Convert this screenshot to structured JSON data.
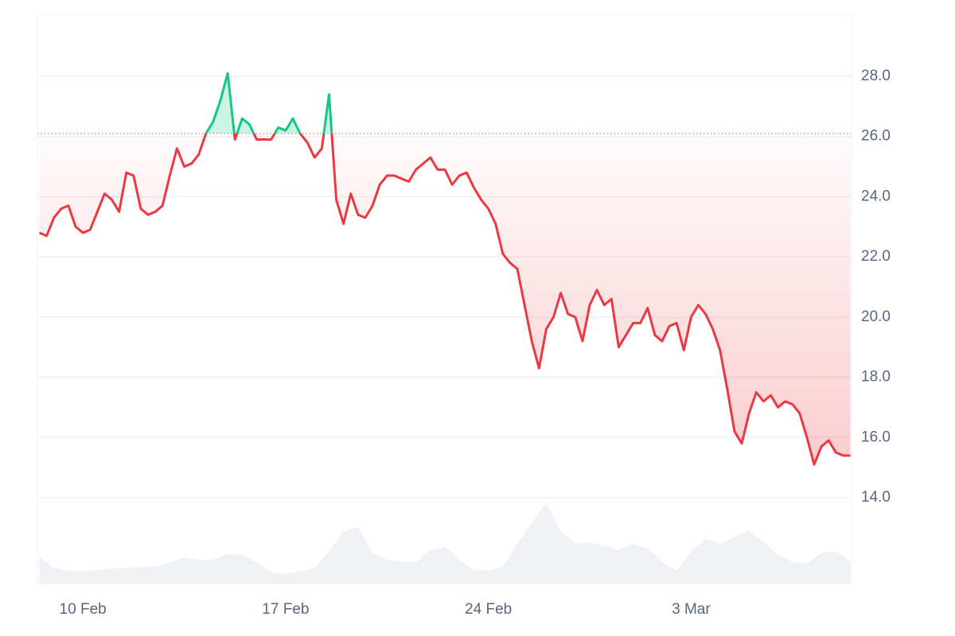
{
  "chart_data": {
    "type": "line",
    "x": [
      8.5,
      8.75,
      9,
      9.25,
      9.5,
      9.75,
      10,
      10.25,
      10.5,
      10.75,
      11,
      11.25,
      11.5,
      11.75,
      12,
      12.25,
      12.5,
      12.75,
      13,
      13.25,
      13.5,
      13.75,
      14,
      14.25,
      14.5,
      14.75,
      15,
      15.25,
      15.5,
      15.75,
      16,
      16.25,
      16.5,
      16.75,
      17,
      17.25,
      17.5,
      17.75,
      18,
      18.25,
      18.5,
      18.75,
      19,
      19.25,
      19.5,
      19.75,
      20,
      20.25,
      20.5,
      20.75,
      21,
      21.25,
      21.5,
      21.75,
      22,
      22.25,
      22.5,
      22.75,
      23,
      23.25,
      23.5,
      23.75,
      24,
      24.25,
      24.5,
      24.75,
      25,
      25.25,
      25.5,
      25.75,
      26,
      26.25,
      26.5,
      26.75,
      27,
      27.25,
      27.5,
      27.75,
      28,
      28.25,
      28.5,
      28.75,
      29,
      29.25,
      29.5,
      29.75,
      30,
      30.25,
      30.5,
      30.75,
      31,
      31.25,
      31.5,
      31.75,
      32,
      32.25,
      32.5,
      32.75,
      33,
      33.25,
      33.5,
      33.75,
      34,
      34.25,
      34.5,
      34.75,
      35,
      35.25,
      35.5,
      35.75,
      36,
      36.25,
      36.5
    ],
    "series": [
      {
        "values": [
          22.8,
          22.7,
          23.3,
          23.6,
          23.7,
          23.0,
          22.8,
          22.9,
          23.5,
          24.1,
          23.9,
          23.5,
          24.8,
          24.7,
          23.6,
          23.4,
          23.5,
          23.7,
          24.7,
          25.6,
          25.0,
          25.1,
          25.4,
          26.1,
          26.5,
          27.2,
          28.1,
          25.9,
          26.6,
          26.4,
          25.9,
          25.9,
          25.9,
          26.3,
          26.2,
          26.6,
          26.1,
          25.8,
          25.3,
          25.6,
          27.4,
          23.9,
          23.1,
          24.1,
          23.4,
          23.3,
          23.7,
          24.4,
          24.7,
          24.7,
          24.6,
          24.5,
          24.9,
          25.1,
          25.3,
          24.9,
          24.9,
          24.4,
          24.7,
          24.8,
          24.3,
          23.9,
          23.6,
          23.1,
          22.1,
          21.8,
          21.6,
          20.4,
          19.2,
          18.3,
          19.6,
          20.0,
          20.8,
          20.1,
          20.0,
          19.2,
          20.4,
          20.9,
          20.4,
          20.6,
          19.0,
          19.4,
          19.8,
          19.8,
          20.3,
          19.4,
          19.2,
          19.7,
          19.8,
          18.9,
          20.0,
          20.4,
          20.1,
          19.6,
          18.9,
          17.6,
          16.2,
          15.8,
          16.8,
          17.5,
          17.2,
          17.4,
          17.0,
          17.2,
          17.1,
          16.8,
          16.0,
          15.1,
          15.7,
          15.9,
          15.5,
          15.4,
          15.4
        ],
        "color_up": "#16c784",
        "color_down": "#ea3943"
      }
    ],
    "baseline": 26.1,
    "xlim": [
      8.43,
      36.54
    ],
    "xticks": [
      {
        "value": 10,
        "label": "10 Feb"
      },
      {
        "value": 17,
        "label": "17 Feb"
      },
      {
        "value": 24,
        "label": "24 Feb"
      },
      {
        "value": 31,
        "label": "3 Mar"
      }
    ],
    "ylim": [
      11.12,
      30.06
    ],
    "yticks": [
      {
        "value": 14,
        "label": "14.0"
      },
      {
        "value": 16,
        "label": "16.0"
      },
      {
        "value": 18,
        "label": "18.0"
      },
      {
        "value": 20,
        "label": "20.0"
      },
      {
        "value": 22,
        "label": "22.0"
      },
      {
        "value": 24,
        "label": "24.0"
      },
      {
        "value": 26,
        "label": "26.0"
      },
      {
        "value": 28,
        "label": "28.0"
      }
    ],
    "y_axis_side": "right",
    "grid": true,
    "volume": {
      "x": [
        8.5,
        9,
        9.5,
        10,
        10.5,
        11,
        11.5,
        12,
        12.5,
        13,
        13.5,
        14,
        14.5,
        15,
        15.5,
        16,
        16.5,
        17,
        17.5,
        18,
        18.5,
        19,
        19.5,
        20,
        20.5,
        21,
        21.5,
        22,
        22.5,
        23,
        23.5,
        24,
        24.5,
        25,
        25.5,
        26,
        26.5,
        27,
        27.5,
        28,
        28.5,
        29,
        29.5,
        30,
        30.5,
        31,
        31.5,
        32,
        32.5,
        33,
        33.5,
        34,
        34.5,
        35,
        35.5,
        36,
        36.5
      ],
      "values": [
        33,
        20,
        17,
        16,
        18,
        19,
        20,
        21,
        22,
        27,
        33,
        30,
        30,
        37,
        36,
        27,
        15,
        13,
        16,
        20,
        40,
        65,
        70,
        38,
        30,
        28,
        27,
        42,
        46,
        30,
        17,
        17,
        22,
        50,
        75,
        100,
        65,
        50,
        51,
        47,
        42,
        49,
        44,
        27,
        17,
        40,
        55,
        50,
        58,
        66,
        52,
        36,
        27,
        26,
        38,
        40,
        28
      ],
      "ylim": [
        0,
        100
      ],
      "color": "#eff1f4"
    }
  }
}
